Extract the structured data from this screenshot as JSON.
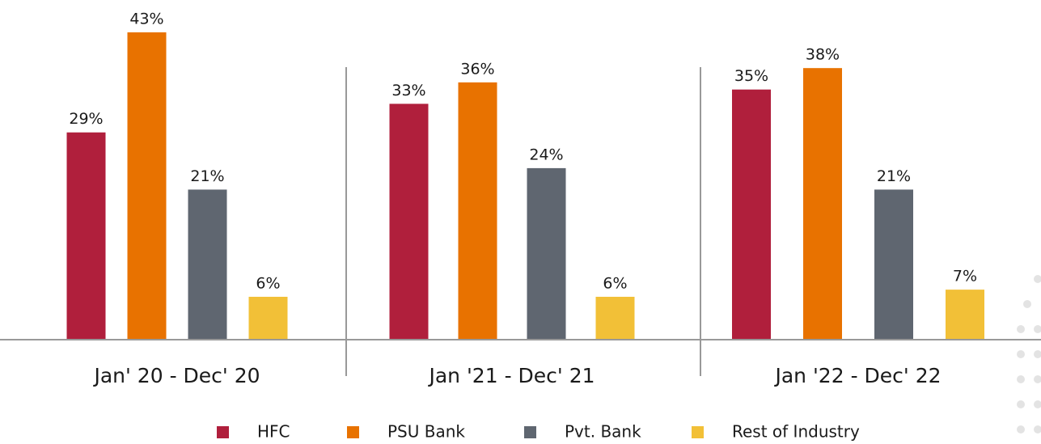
{
  "chart_data": {
    "type": "bar",
    "categories": [
      "Jan' 20 - Dec' 20",
      "Jan '21 - Dec' 21",
      "Jan '22 - Dec' 22"
    ],
    "series": [
      {
        "name": "HFC",
        "color": "#b01f3c",
        "values": [
          29,
          33,
          35
        ],
        "value_labels": [
          "29%",
          "33%",
          "35%"
        ]
      },
      {
        "name": "PSU Bank",
        "color": "#e87200",
        "values": [
          43,
          36,
          38
        ],
        "value_labels": [
          "43%",
          "36%",
          "38%"
        ]
      },
      {
        "name": "Pvt. Bank",
        "color": "#5f6670",
        "values": [
          21,
          24,
          21
        ],
        "value_labels": [
          "21%",
          "24%",
          "21%"
        ]
      },
      {
        "name": "Rest of Industry",
        "color": "#f2c037",
        "values": [
          6,
          6,
          7
        ],
        "value_labels": [
          "6%",
          "6%",
          "7%"
        ]
      }
    ]
  }
}
